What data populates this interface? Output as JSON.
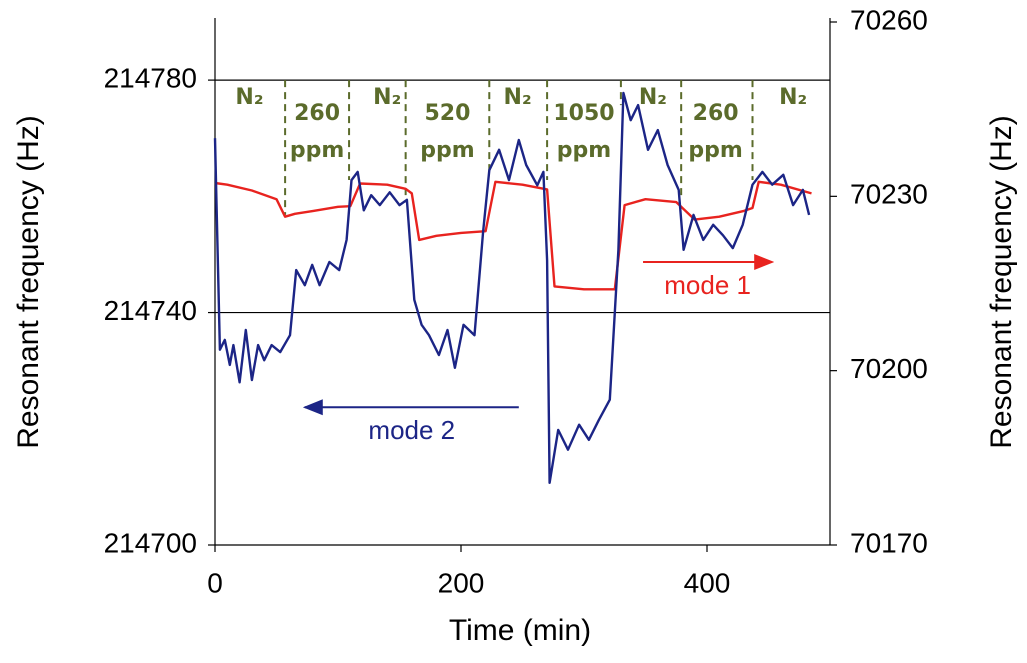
{
  "chart_data": {
    "type": "line",
    "xlabel": "Time (min)",
    "ylabel": "Resonant frequency (Hz)",
    "y2label": "Resonant frequency (Hz)",
    "xlim": [
      0,
      500
    ],
    "xticks": [
      0,
      200,
      400
    ],
    "ylim": [
      214700,
      214790
    ],
    "yticks": [
      214700,
      214740,
      214780
    ],
    "y2lim": [
      70170,
      70260
    ],
    "y2ticks": [
      70170,
      70200,
      70230,
      70260
    ],
    "grid": true,
    "series": [
      {
        "name": "mode 1",
        "color": "#e8231f",
        "axis": "y2",
        "arrow": {
          "from": 348,
          "to": 453,
          "y": 70218.7
        },
        "x": [
          0,
          10,
          30,
          50,
          57,
          65,
          80,
          100,
          110,
          118,
          140,
          155,
          160,
          166,
          180,
          200,
          220,
          228,
          250,
          270,
          276,
          300,
          325,
          333,
          350,
          375,
          390,
          410,
          430,
          437,
          442,
          460,
          485
        ],
        "values": [
          70232.3,
          70232,
          70231,
          70229.5,
          70226.5,
          70227,
          70227.5,
          70228.2,
          70228.3,
          70232.2,
          70232,
          70231.3,
          70230.5,
          70222.5,
          70223.2,
          70223.7,
          70224,
          70232.5,
          70232,
          70231.2,
          70214.5,
          70214,
          70214,
          70228.5,
          70229.5,
          70229,
          70226,
          70226.5,
          70227.5,
          70228,
          70232.5,
          70232,
          70230.5
        ]
      },
      {
        "name": "mode 2",
        "color": "#1c2586",
        "arrow": {
          "from": 247,
          "to": 73,
          "y": 214723.7
        },
        "x": [
          0,
          4,
          8,
          12,
          15,
          20,
          25,
          30,
          35,
          40,
          46,
          53,
          61,
          66,
          73,
          79,
          85,
          93,
          101,
          107,
          111,
          116,
          121,
          127,
          134,
          142,
          150,
          156,
          162,
          168,
          174,
          182,
          189,
          195,
          202,
          211,
          218,
          223,
          231,
          239,
          247,
          253,
          262,
          267,
          270,
          272,
          279,
          287,
          296,
          304,
          312,
          321,
          328,
          332,
          338,
          344,
          352,
          360,
          368,
          377,
          381,
          389,
          397,
          405,
          413,
          421,
          429,
          437,
          445,
          453,
          462,
          470,
          478,
          483
        ],
        "values": [
          214770,
          214733.6,
          214735.3,
          214731,
          214734.4,
          214728,
          214737,
          214728.4,
          214734.4,
          214731.8,
          214734.4,
          214733.2,
          214736.1,
          214747.3,
          214744.7,
          214748.2,
          214744.7,
          214748.7,
          214747.3,
          214752.5,
          214762.8,
          214764.2,
          214757.6,
          214760.2,
          214758.5,
          214760.7,
          214758.5,
          214759.4,
          214742.2,
          214737.9,
          214736.1,
          214732.7,
          214737,
          214730.5,
          214737.9,
          214736.1,
          214753.9,
          214764.5,
          214768,
          214762.8,
          214769.7,
          214765.4,
          214761.9,
          214764.2,
          214749,
          214710.7,
          214719.8,
          214716.4,
          214720.7,
          214718.1,
          214721.5,
          214725,
          214750.8,
          214777.8,
          214773.1,
          214775.7,
          214768,
          214771.4,
          214765.4,
          214761.1,
          214750.8,
          214756.8,
          214752.5,
          214755.1,
          214753.3,
          214751.1,
          214755.1,
          214762,
          214764.2,
          214762,
          214763.7,
          214758.5,
          214761.1,
          214756.8
        ]
      }
    ],
    "dividers": [
      {
        "x": 57,
        "y_end": 214756.8
      },
      {
        "x": 109,
        "y_end": 214762.8
      },
      {
        "x": 155,
        "y_end": 214760.2
      },
      {
        "x": 223,
        "y_end": 214764.5
      },
      {
        "x": 270,
        "y_end": 214762.8
      },
      {
        "x": 330,
        "y_end": 214775.7
      },
      {
        "x": 379,
        "y_end": 214759.4
      },
      {
        "x": 437,
        "y_end": 214762.8
      }
    ],
    "bands": [
      {
        "x": 28,
        "lines": [
          "N₂"
        ]
      },
      {
        "x": 83,
        "lines": [
          "260",
          "ppm"
        ]
      },
      {
        "x": 140,
        "lines": [
          "N₂"
        ]
      },
      {
        "x": 189,
        "lines": [
          "520",
          "ppm"
        ]
      },
      {
        "x": 246,
        "lines": [
          "N₂"
        ]
      },
      {
        "x": 300,
        "lines": [
          "1050",
          "ppm"
        ]
      },
      {
        "x": 356,
        "lines": [
          "N₂"
        ]
      },
      {
        "x": 407,
        "lines": [
          "260",
          "ppm"
        ]
      },
      {
        "x": 470,
        "lines": [
          "N₂"
        ]
      }
    ]
  }
}
